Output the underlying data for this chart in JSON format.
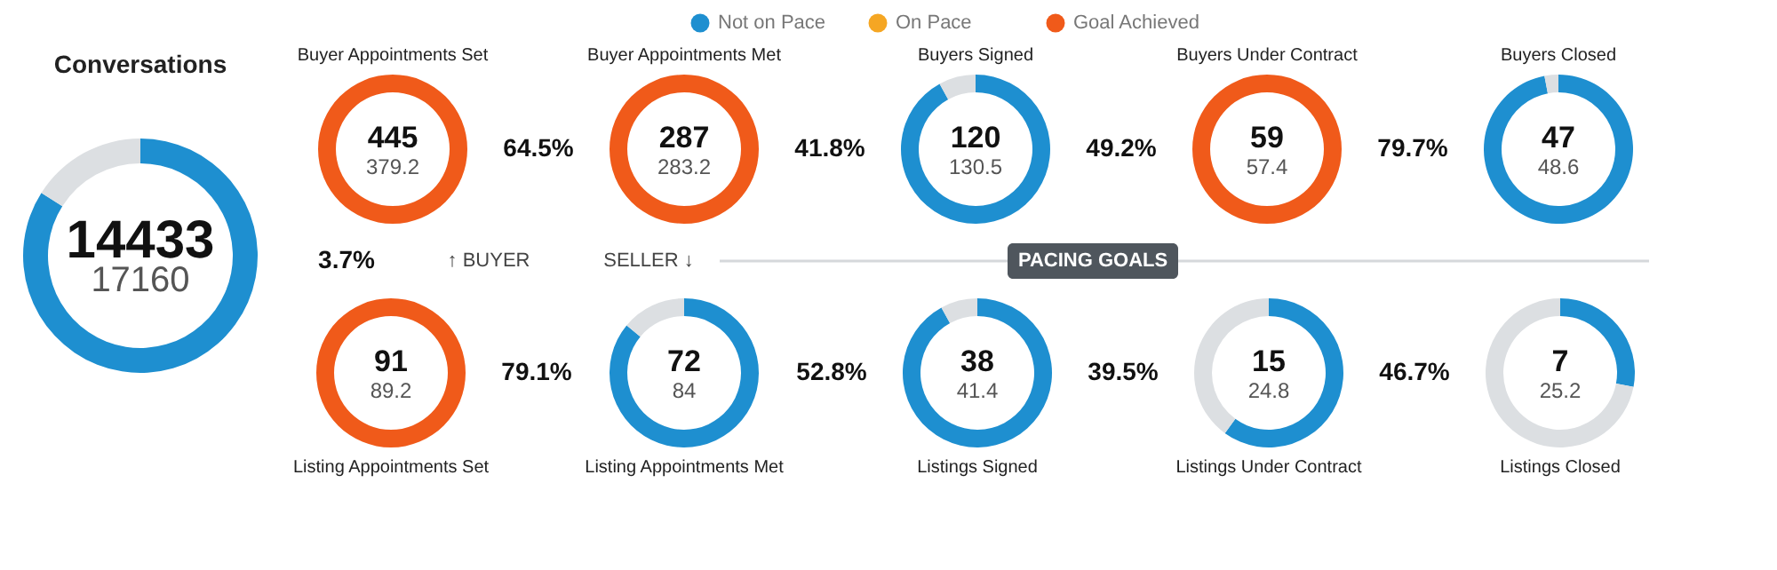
{
  "chart_data": [
    {
      "type": "other",
      "categories": [
        "Not on Pace",
        "On Pace",
        "Goal Achieved"
      ],
      "colors": [
        "#1e8fd0",
        "#f5a623",
        "#f05a1a"
      ]
    },
    {
      "type": "donut",
      "title": "Conversations",
      "categories": [
        null,
        null
      ],
      "values": [
        84,
        16
      ],
      "colors": [
        "#1e8fd0",
        "#dcdfe2"
      ],
      "annotations": [
        "14433",
        "17160"
      ]
    },
    {
      "type": "donut",
      "title": "Buyer Appointments Set",
      "categories": [
        null,
        null
      ],
      "values": [
        100,
        0
      ],
      "colors": [
        "#f05a1a",
        "#dcdfe2"
      ],
      "annotations": [
        "445",
        "379.2"
      ]
    },
    {
      "type": "other",
      "annotations": [
        "64.5%"
      ]
    },
    {
      "type": "donut",
      "title": "Buyer Appointments Met",
      "categories": [
        null,
        null
      ],
      "values": [
        100,
        0
      ],
      "colors": [
        "#f05a1a",
        "#dcdfe2"
      ],
      "annotations": [
        "287",
        "283.2"
      ]
    },
    {
      "type": "other",
      "annotations": [
        "41.8%"
      ]
    },
    {
      "type": "donut",
      "title": "Buyers Signed",
      "categories": [
        null,
        null
      ],
      "values": [
        92,
        8
      ],
      "colors": [
        "#1e8fd0",
        "#dcdfe2"
      ],
      "annotations": [
        "120",
        "130.5"
      ]
    },
    {
      "type": "other",
      "annotations": [
        "49.2%"
      ]
    },
    {
      "type": "donut",
      "title": "Buyers Under Contract",
      "categories": [
        null,
        null
      ],
      "values": [
        100,
        0
      ],
      "colors": [
        "#f05a1a",
        "#dcdfe2"
      ],
      "annotations": [
        "59",
        "57.4"
      ]
    },
    {
      "type": "other",
      "annotations": [
        "79.7%"
      ]
    },
    {
      "type": "donut",
      "title": "Buyers Closed",
      "categories": [
        null,
        null
      ],
      "values": [
        97,
        3
      ],
      "colors": [
        "#1e8fd0",
        "#dcdfe2"
      ],
      "annotations": [
        "47",
        "48.6"
      ]
    },
    {
      "type": "other",
      "annotations": [
        "3.7%",
        "↑ BUYER",
        "SELLER ↓",
        "PACING GOALS"
      ]
    },
    {
      "type": "donut",
      "title": "Listing Appointments Set",
      "categories": [
        null,
        null
      ],
      "values": [
        100,
        0
      ],
      "colors": [
        "#f05a1a",
        "#dcdfe2"
      ],
      "annotations": [
        "91",
        "89.2"
      ]
    },
    {
      "type": "other",
      "annotations": [
        "79.1%"
      ]
    },
    {
      "type": "donut",
      "title": "Listing Appointments Met",
      "categories": [
        null,
        null
      ],
      "values": [
        86,
        14
      ],
      "colors": [
        "#1e8fd0",
        "#dcdfe2"
      ],
      "annotations": [
        "72",
        "84"
      ]
    },
    {
      "type": "other",
      "annotations": [
        "52.8%"
      ]
    },
    {
      "type": "donut",
      "title": "Listings Signed",
      "categories": [
        null,
        null
      ],
      "values": [
        92,
        8
      ],
      "colors": [
        "#1e8fd0",
        "#dcdfe2"
      ],
      "annotations": [
        "38",
        "41.4"
      ]
    },
    {
      "type": "other",
      "annotations": [
        "39.5%"
      ]
    },
    {
      "type": "donut",
      "title": "Listings Under Contract",
      "categories": [
        null,
        null
      ],
      "values": [
        60,
        40
      ],
      "colors": [
        "#1e8fd0",
        "#dcdfe2"
      ],
      "annotations": [
        "15",
        "24.8"
      ]
    },
    {
      "type": "other",
      "annotations": [
        "46.7%"
      ]
    },
    {
      "type": "donut",
      "title": "Listings Closed",
      "categories": [
        null,
        null
      ],
      "values": [
        28,
        72
      ],
      "colors": [
        "#1e8fd0",
        "#dcdfe2"
      ],
      "annotations": [
        "7",
        "25.2"
      ]
    }
  ]
}
